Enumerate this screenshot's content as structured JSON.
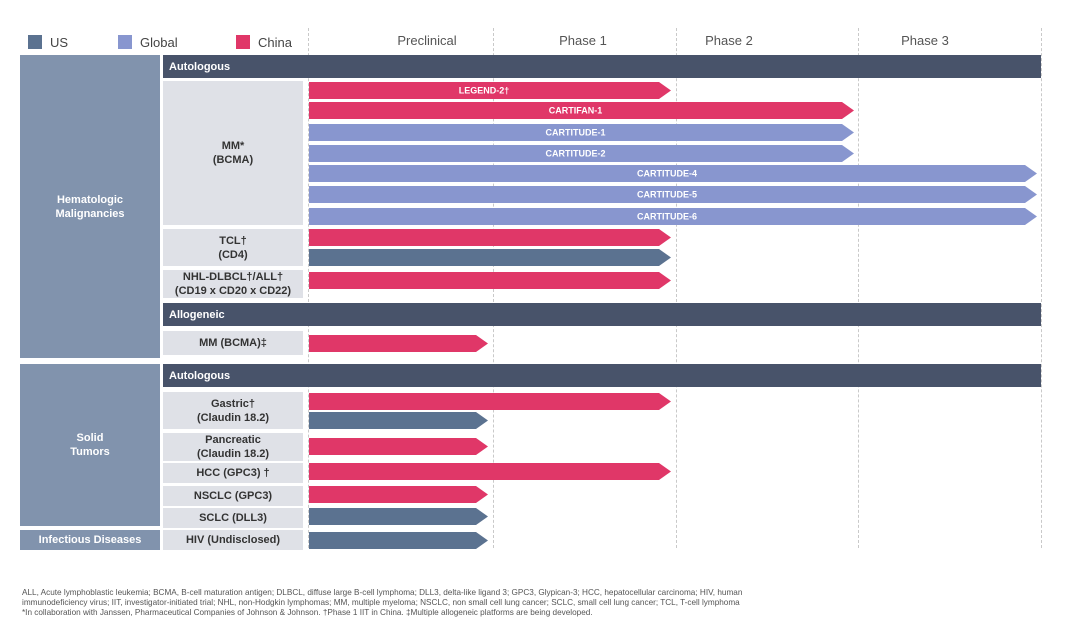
{
  "legend": [
    {
      "label": "US",
      "color": "#5b7290"
    },
    {
      "label": "Global",
      "color": "#8896cf"
    },
    {
      "label": "China",
      "color": "#e03768"
    }
  ],
  "phases": [
    "Preclinical",
    "Phase 1",
    "Phase 2",
    "Phase 3"
  ],
  "categories": {
    "hematologic": "Hematologic\nMalignancies",
    "solid": "Solid\nTumors",
    "infectious": "Infectious Diseases"
  },
  "headers": {
    "autologous_1": "Autologous",
    "allogeneic": "Allogeneic",
    "autologous_2": "Autologous"
  },
  "indications": {
    "mm": "MM*\n(BCMA)",
    "tcl": "TCL†\n(CD4)",
    "nhl": "NHL-DLBCL†/ALL†\n(CD19 x CD20 x CD22)",
    "mm_allo": "MM (BCMA)‡",
    "gastric": "Gastric†\n(Claudin 18.2)",
    "pancreatic": "Pancreatic\n(Claudin 18.2)",
    "hcc": "HCC (GPC3) †",
    "nsclc": "NSCLC (GPC3)",
    "sclc": "SCLC (DLL3)",
    "hiv": "HIV (Undisclosed)"
  },
  "chart_data": {
    "type": "bar",
    "orientation": "horizontal",
    "stage_scale": [
      "Preclinical",
      "Phase 1",
      "Phase 2",
      "Phase 3"
    ],
    "series_legend": [
      "US",
      "Global",
      "China"
    ],
    "programs": [
      {
        "indication": "MM (BCMA)",
        "label": "LEGEND-2†",
        "region": "China",
        "stage_end": 2.0
      },
      {
        "indication": "MM (BCMA)",
        "label": "CARTIFAN-1",
        "region": "China",
        "stage_end": 3.0
      },
      {
        "indication": "MM (BCMA)",
        "label": "CARTITUDE-1",
        "region": "Global",
        "stage_end": 3.0
      },
      {
        "indication": "MM (BCMA)",
        "label": "CARTITUDE-2",
        "region": "Global",
        "stage_end": 3.0
      },
      {
        "indication": "MM (BCMA)",
        "label": "CARTITUDE-4",
        "region": "Global",
        "stage_end": 4.0
      },
      {
        "indication": "MM (BCMA)",
        "label": "CARTITUDE-5",
        "region": "Global",
        "stage_end": 4.0
      },
      {
        "indication": "MM (BCMA)",
        "label": "CARTITUDE-6",
        "region": "Global",
        "stage_end": 4.0
      },
      {
        "indication": "TCL (CD4)",
        "label": "",
        "region": "China",
        "stage_end": 2.0
      },
      {
        "indication": "TCL (CD4)",
        "label": "",
        "region": "US",
        "stage_end": 2.0
      },
      {
        "indication": "NHL-DLBCL/ALL (CD19 x CD20 x CD22)",
        "label": "",
        "region": "China",
        "stage_end": 2.0
      },
      {
        "indication": "MM (BCMA) allogeneic",
        "label": "",
        "region": "China",
        "stage_end": 1.0
      },
      {
        "indication": "Gastric (Claudin 18.2)",
        "label": "",
        "region": "China",
        "stage_end": 2.0
      },
      {
        "indication": "Gastric (Claudin 18.2)",
        "label": "",
        "region": "US",
        "stage_end": 1.0
      },
      {
        "indication": "Pancreatic (Claudin 18.2)",
        "label": "",
        "region": "China",
        "stage_end": 1.0
      },
      {
        "indication": "HCC (GPC3)",
        "label": "",
        "region": "China",
        "stage_end": 2.0
      },
      {
        "indication": "NSCLC (GPC3)",
        "label": "",
        "region": "China",
        "stage_end": 1.0
      },
      {
        "indication": "SCLC (DLL3)",
        "label": "",
        "region": "US",
        "stage_end": 1.0
      },
      {
        "indication": "HIV (Undisclosed)",
        "label": "",
        "region": "US",
        "stage_end": 1.0
      }
    ]
  },
  "footnotes": [
    "ALL, Acute lymphoblastic leukemia; BCMA, B-cell maturation antigen; DLBCL, diffuse large B-cell lymphoma; DLL3, delta-like ligand 3; GPC3, Glypican-3; HCC, hepatocellular carcinoma; HIV, human",
    "immunodeficiency virus; IIT, investigator-initiated trial; NHL, non-Hodgkin lymphomas; MM, multiple myeloma; NSCLC, non small cell lung cancer; SCLC, small cell lung cancer; TCL, T-cell lymphoma",
    "*In collaboration with Janssen, Pharmaceutical Companies of Johnson & Johnson. †Phase 1 IIT in China. ‡Multiple allogeneic platforms are being developed."
  ]
}
